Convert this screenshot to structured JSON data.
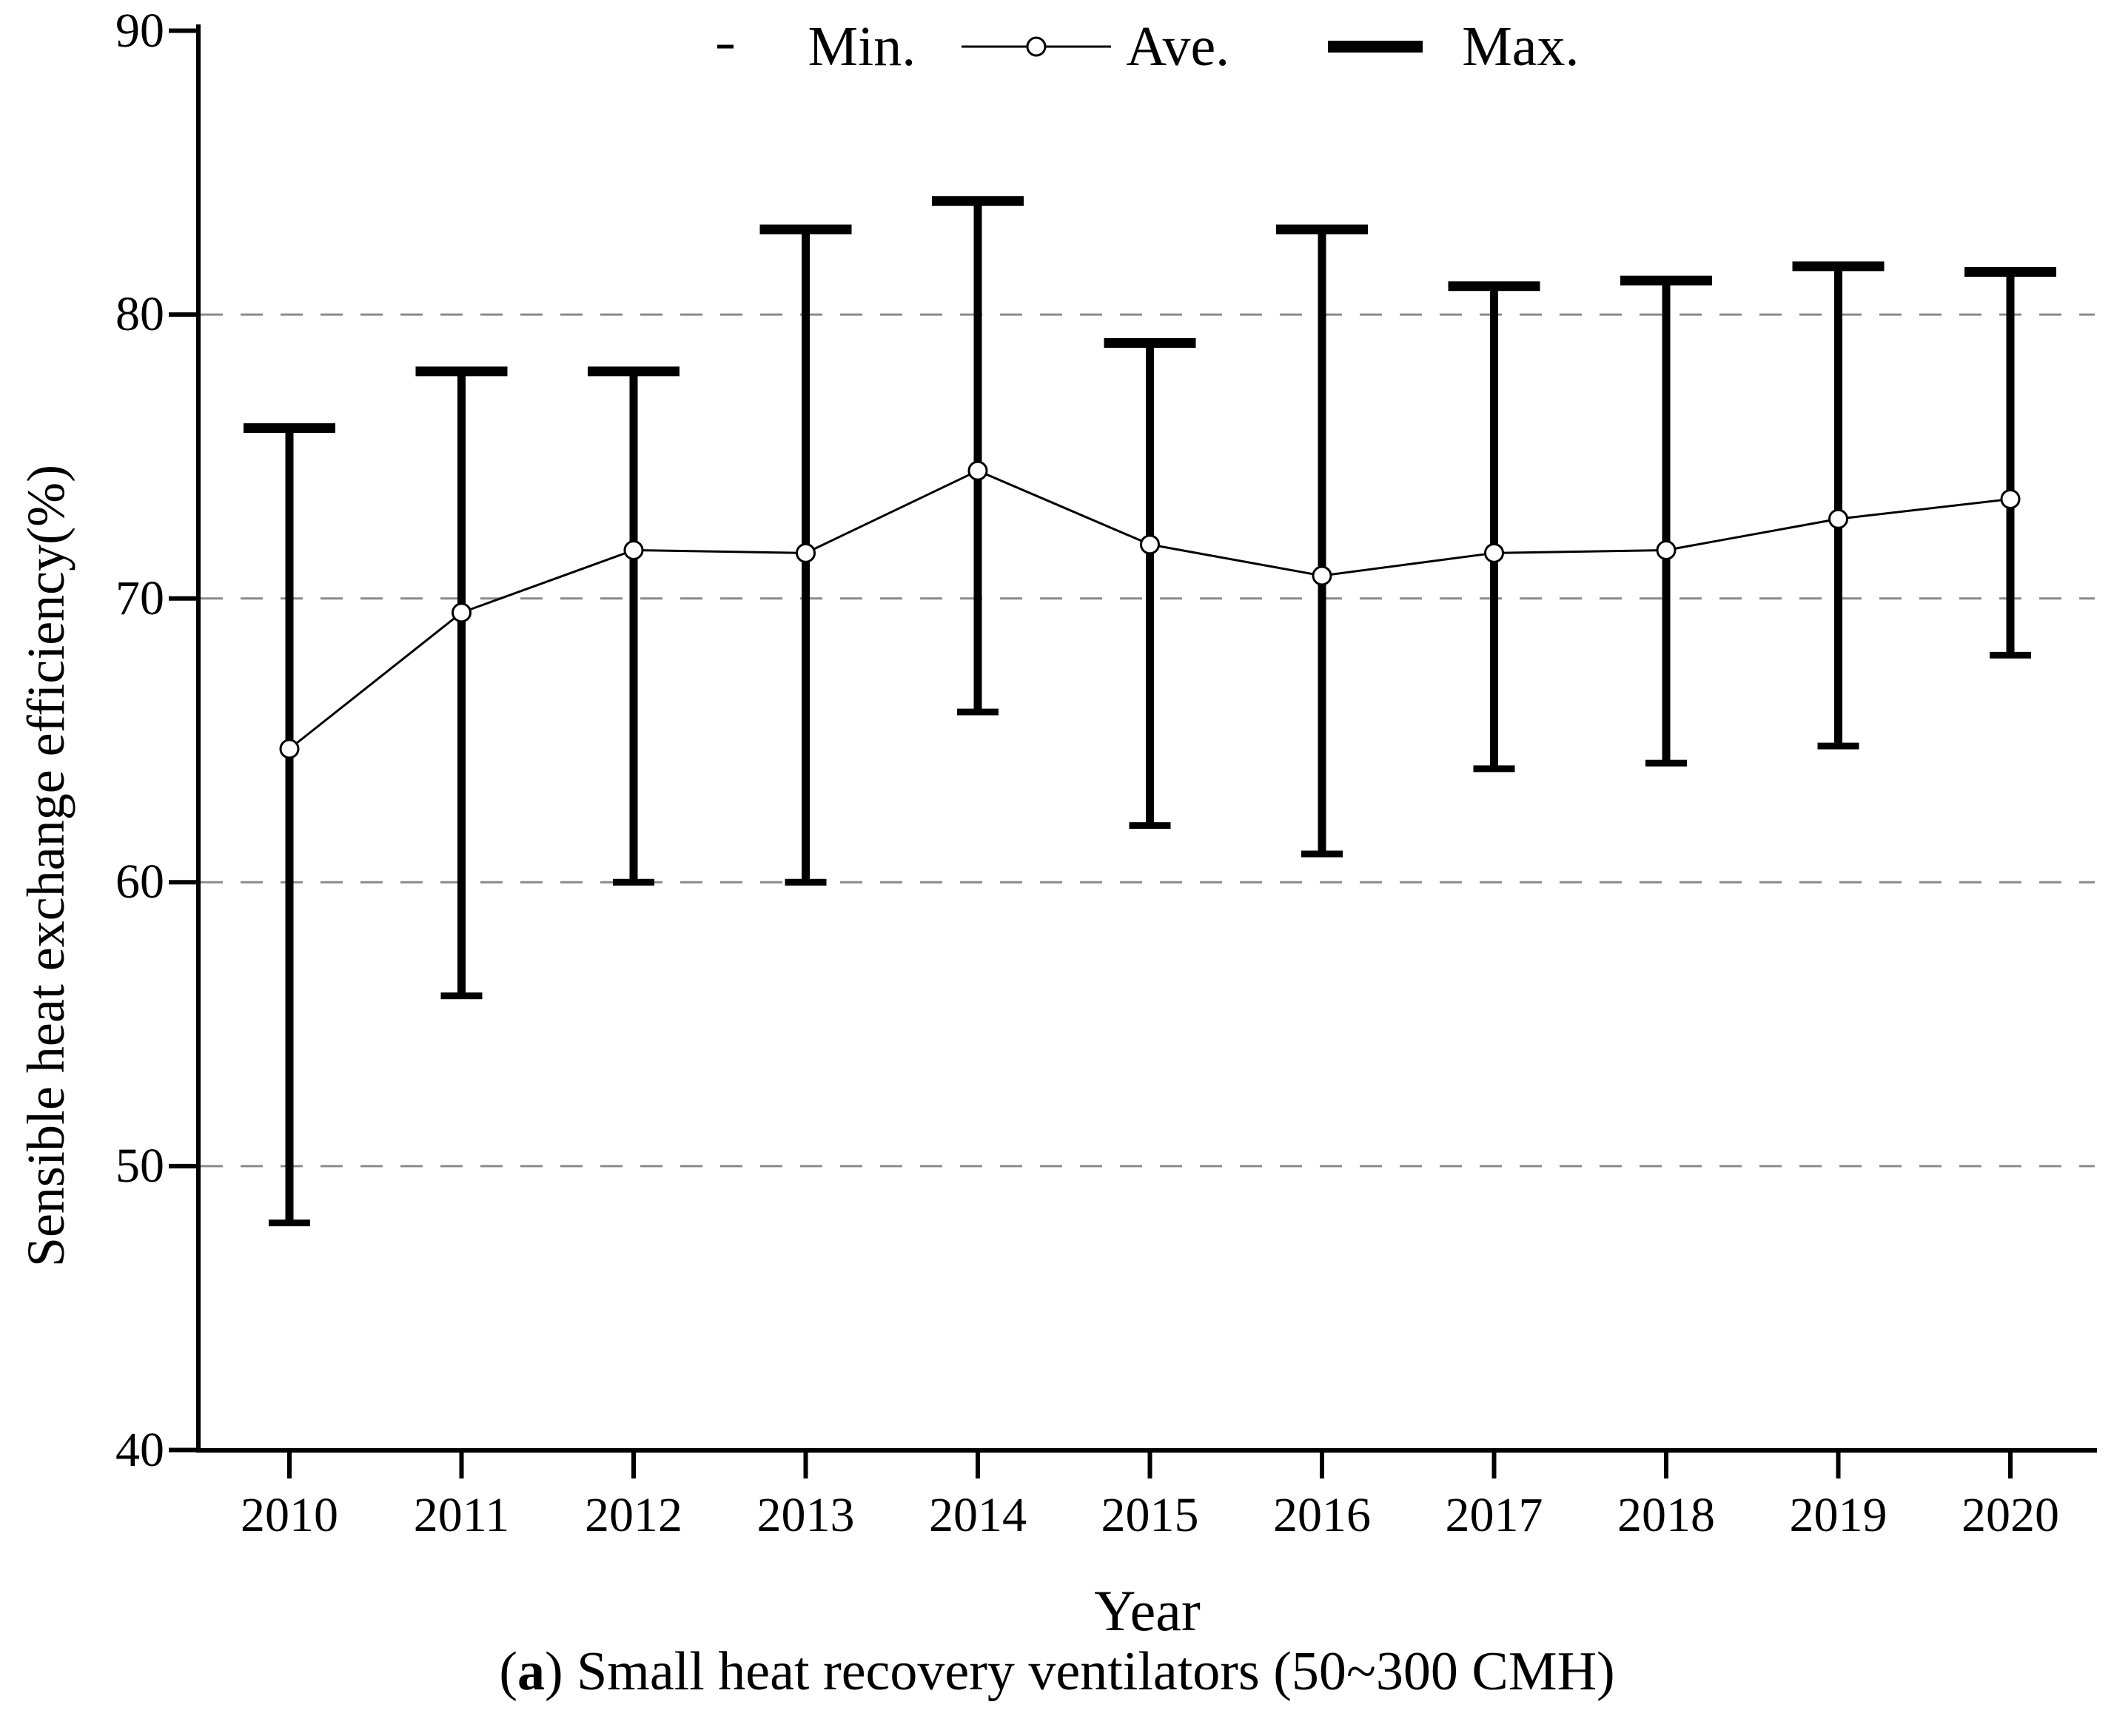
{
  "chart_data": {
    "type": "line",
    "variant": "error-bar (min/ave/max per year)",
    "title": "",
    "xlabel": "Year",
    "ylabel": "Sensible heat exchange efficiency(%)",
    "categories": [
      "2010",
      "2011",
      "2012",
      "2013",
      "2014",
      "2015",
      "2016",
      "2017",
      "2018",
      "2019",
      "2020"
    ],
    "series": [
      {
        "name": "Min.",
        "values": [
          48,
          56,
          60,
          60,
          66,
          62,
          61,
          64,
          64.2,
          64.8,
          68
        ]
      },
      {
        "name": "Ave.",
        "values": [
          64.7,
          69.5,
          71.7,
          71.6,
          74.5,
          71.9,
          70.8,
          71.6,
          71.7,
          72.8,
          73.5
        ]
      },
      {
        "name": "Max.",
        "values": [
          76,
          78,
          78,
          83,
          84,
          79,
          83,
          81,
          81.2,
          81.7,
          81.5
        ]
      }
    ],
    "ylim": [
      40,
      90
    ],
    "yticks": [
      "40",
      "50",
      "60",
      "70",
      "80",
      "90"
    ],
    "gridlines_at": [
      50,
      60,
      70,
      80
    ],
    "grid": "horizontal dashed",
    "legend_position": "top-center",
    "colors": {
      "line": "#000000",
      "error_bar": "#000000",
      "marker_fill": "#ffffff",
      "grid": "#8a8a8a",
      "background": "#ffffff"
    }
  },
  "legend": {
    "items": [
      {
        "label": "Min.",
        "marker": "thin-short-dash"
      },
      {
        "label": "Ave.",
        "marker": "thin-line-with-open-circle"
      },
      {
        "label": "Max.",
        "marker": "thick-line"
      }
    ]
  },
  "caption": {
    "prefix": "(",
    "bold": "a",
    "rest": ") Small heat recovery ventilators (50~300 CMH)"
  }
}
